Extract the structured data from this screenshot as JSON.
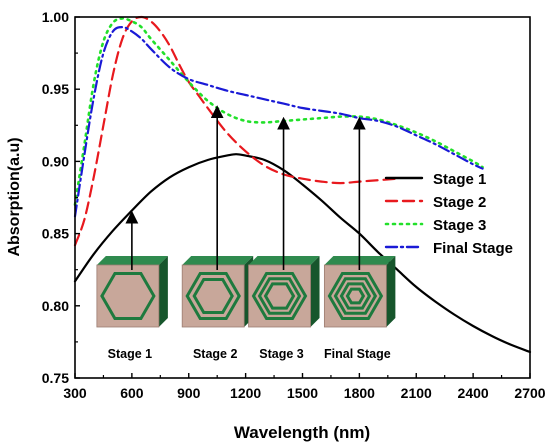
{
  "chart_data": {
    "type": "line",
    "xlabel": "Wavelength (nm)",
    "ylabel": "Absorption(a.u)",
    "xlim": [
      300,
      2700
    ],
    "ylim": [
      0.75,
      1.0
    ],
    "x_ticks": [
      300,
      600,
      900,
      1200,
      1500,
      1800,
      2100,
      2400,
      2700
    ],
    "y_ticks": [
      0.75,
      0.8,
      0.85,
      0.9,
      0.95,
      1.0
    ],
    "y_tick_labels": [
      "0.75",
      "0.80",
      "0.85",
      "0.90",
      "0.95",
      "1.00"
    ],
    "legend_position": "right",
    "series": [
      {
        "name": "Stage 1",
        "color": "#000000",
        "dash": "solid",
        "x": [
          300,
          400,
          500,
          600,
          700,
          800,
          900,
          1000,
          1100,
          1150,
          1200,
          1300,
          1400,
          1500,
          1600,
          1700,
          1800,
          1900,
          2000,
          2100,
          2200,
          2300,
          2400,
          2500,
          2600,
          2700
        ],
        "y": [
          0.817,
          0.836,
          0.852,
          0.866,
          0.879,
          0.889,
          0.896,
          0.901,
          0.904,
          0.905,
          0.904,
          0.901,
          0.894,
          0.884,
          0.873,
          0.861,
          0.85,
          0.837,
          0.825,
          0.813,
          0.803,
          0.794,
          0.786,
          0.779,
          0.773,
          0.768
        ]
      },
      {
        "name": "Stage 2",
        "color": "#e8191e",
        "dash": "dash",
        "x": [
          300,
          350,
          400,
          450,
          500,
          550,
          600,
          650,
          700,
          750,
          800,
          850,
          900,
          950,
          1000,
          1100,
          1200,
          1300,
          1400,
          1500,
          1600,
          1700,
          1800,
          1900,
          2000
        ],
        "y": [
          0.842,
          0.86,
          0.89,
          0.925,
          0.96,
          0.985,
          0.997,
          1.0,
          0.997,
          0.99,
          0.98,
          0.967,
          0.955,
          0.946,
          0.937,
          0.92,
          0.907,
          0.897,
          0.891,
          0.888,
          0.886,
          0.885,
          0.886,
          0.887,
          0.888
        ]
      },
      {
        "name": "Stage 3",
        "color": "#22e02a",
        "dash": "dot",
        "x": [
          300,
          350,
          400,
          450,
          500,
          550,
          600,
          650,
          700,
          800,
          900,
          1000,
          1100,
          1200,
          1300,
          1400,
          1500,
          1600,
          1700,
          1800,
          1900,
          2000,
          2100,
          2200,
          2300,
          2400,
          2450
        ],
        "y": [
          0.87,
          0.912,
          0.955,
          0.983,
          0.996,
          0.999,
          0.997,
          0.993,
          0.985,
          0.97,
          0.955,
          0.942,
          0.933,
          0.928,
          0.927,
          0.928,
          0.929,
          0.93,
          0.931,
          0.931,
          0.929,
          0.925,
          0.92,
          0.914,
          0.907,
          0.9,
          0.896
        ]
      },
      {
        "name": "Final Stage",
        "color": "#1a1ad6",
        "dash": "dashdot",
        "x": [
          300,
          350,
          400,
          450,
          500,
          550,
          600,
          650,
          700,
          800,
          900,
          1000,
          1100,
          1200,
          1300,
          1400,
          1500,
          1600,
          1700,
          1800,
          1900,
          2000,
          2100,
          2200,
          2300,
          2400,
          2450
        ],
        "y": [
          0.862,
          0.905,
          0.945,
          0.975,
          0.99,
          0.993,
          0.99,
          0.985,
          0.978,
          0.965,
          0.957,
          0.953,
          0.949,
          0.946,
          0.943,
          0.94,
          0.937,
          0.935,
          0.933,
          0.93,
          0.928,
          0.924,
          0.918,
          0.912,
          0.905,
          0.898,
          0.895
        ]
      }
    ],
    "annotations": [
      {
        "label": "Stage 1",
        "x": 600,
        "y_target": 0.867,
        "rings": 1
      },
      {
        "label": "Stage 2",
        "x": 1050,
        "y_target": 0.94,
        "rings": 2
      },
      {
        "label": "Stage 3",
        "x": 1400,
        "y_target": 0.932,
        "rings": 3
      },
      {
        "label": "Final Stage",
        "x": 1800,
        "y_target": 0.932,
        "rings": 4
      }
    ]
  }
}
